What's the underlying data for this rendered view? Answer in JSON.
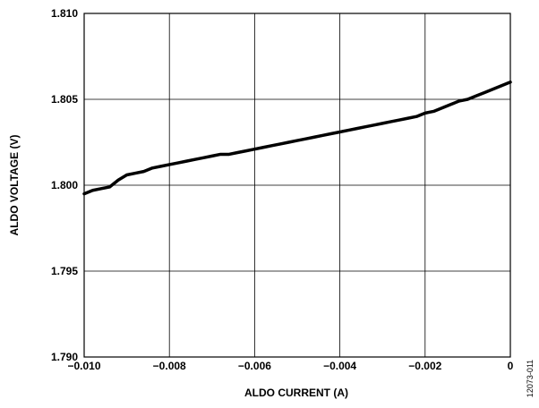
{
  "chart_data": {
    "type": "line",
    "title": "",
    "xlabel": "ALDO CURRENT (A)",
    "ylabel": "ALDO VOLTAGE (V)",
    "xlim": [
      -0.01,
      0
    ],
    "ylim": [
      1.79,
      1.81
    ],
    "grid": true,
    "x_ticks": [
      -0.01,
      -0.008,
      -0.006,
      -0.004,
      -0.002,
      0
    ],
    "x_tick_labels": [
      "−0.010",
      "−0.008",
      "−0.006",
      "−0.004",
      "−0.002",
      "0"
    ],
    "y_ticks": [
      1.79,
      1.795,
      1.8,
      1.805,
      1.81
    ],
    "y_tick_labels": [
      "1.790",
      "1.795",
      "1.800",
      "1.805",
      "1.810"
    ],
    "series": [
      {
        "color": "#000000",
        "x": [
          -0.01,
          -0.0098,
          -0.0096,
          -0.0094,
          -0.0092,
          -0.009,
          -0.0088,
          -0.0086,
          -0.0084,
          -0.0082,
          -0.008,
          -0.0078,
          -0.0076,
          -0.0074,
          -0.0072,
          -0.007,
          -0.0068,
          -0.0066,
          -0.0064,
          -0.0062,
          -0.006,
          -0.0058,
          -0.0056,
          -0.0054,
          -0.0052,
          -0.005,
          -0.0048,
          -0.0046,
          -0.0044,
          -0.0042,
          -0.004,
          -0.0038,
          -0.0036,
          -0.0034,
          -0.0032,
          -0.003,
          -0.0028,
          -0.0026,
          -0.0024,
          -0.0022,
          -0.002,
          -0.0018,
          -0.0016,
          -0.0014,
          -0.0012,
          -0.001,
          -0.0008,
          -0.0006,
          -0.0004,
          -0.0002,
          0.0
        ],
        "y": [
          1.7995,
          1.7997,
          1.7998,
          1.7999,
          1.8003,
          1.8006,
          1.8007,
          1.8008,
          1.801,
          1.8011,
          1.8012,
          1.8013,
          1.8014,
          1.8015,
          1.8016,
          1.8017,
          1.8018,
          1.8018,
          1.8019,
          1.802,
          1.8021,
          1.8022,
          1.8023,
          1.8024,
          1.8025,
          1.8026,
          1.8027,
          1.8028,
          1.8029,
          1.803,
          1.8031,
          1.8032,
          1.8033,
          1.8034,
          1.8035,
          1.8036,
          1.8037,
          1.8038,
          1.8039,
          1.804,
          1.8042,
          1.8043,
          1.8045,
          1.8047,
          1.8049,
          1.805,
          1.8052,
          1.8054,
          1.8056,
          1.8058,
          1.806
        ]
      }
    ]
  },
  "figure_id": "12073-011"
}
